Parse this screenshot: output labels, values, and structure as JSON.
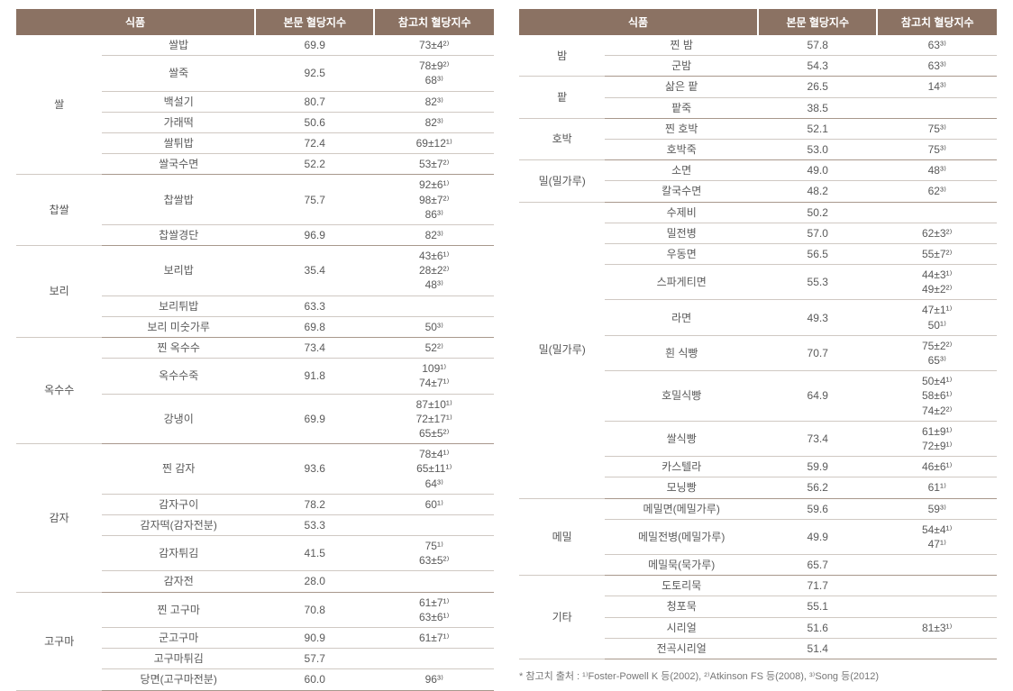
{
  "headers": {
    "food_group": "식품",
    "value1": "본문 혈당지수",
    "value2": "참고치 혈당지수"
  },
  "footnote": "* 참고치 출처 : ¹⁾Foster-Powell K 등(2002), ²⁾Atkinson FS 등(2008), ³⁾Song 등(2012)",
  "leftGroups": [
    {
      "cat": "쌀",
      "rows": [
        {
          "food": "쌀밥",
          "v1": "69.9",
          "v2": "73±4²⁾"
        },
        {
          "food": "쌀죽",
          "v1": "92.5",
          "v2": "78±9²⁾\n68³⁾"
        },
        {
          "food": "백설기",
          "v1": "80.7",
          "v2": "82³⁾"
        },
        {
          "food": "가래떡",
          "v1": "50.6",
          "v2": "82³⁾"
        },
        {
          "food": "쌀튀밥",
          "v1": "72.4",
          "v2": "69±12¹⁾"
        },
        {
          "food": "쌀국수면",
          "v1": "52.2",
          "v2": "53±7²⁾"
        }
      ]
    },
    {
      "cat": "찹쌀",
      "rows": [
        {
          "food": "찹쌀밥",
          "v1": "75.7",
          "v2": "92±6¹⁾\n98±7²⁾\n86³⁾"
        },
        {
          "food": "찹쌀경단",
          "v1": "96.9",
          "v2": "82³⁾"
        }
      ]
    },
    {
      "cat": "보리",
      "rows": [
        {
          "food": "보리밥",
          "v1": "35.4",
          "v2": "43±6¹⁾\n28±2²⁾\n48³⁾"
        },
        {
          "food": "보리튀밥",
          "v1": "63.3",
          "v2": ""
        },
        {
          "food": "보리 미숫가루",
          "v1": "69.8",
          "v2": "50³⁾"
        }
      ]
    },
    {
      "cat": "옥수수",
      "rows": [
        {
          "food": "찐 옥수수",
          "v1": "73.4",
          "v2": "52²⁾"
        },
        {
          "food": "옥수수죽",
          "v1": "91.8",
          "v2": "109¹⁾\n74±7¹⁾"
        },
        {
          "food": "강냉이",
          "v1": "69.9",
          "v2": "87±10¹⁾\n72±17¹⁾\n65±5²⁾"
        }
      ]
    },
    {
      "cat": "감자",
      "rows": [
        {
          "food": "찐 감자",
          "v1": "93.6",
          "v2": "78±4¹⁾\n65±11¹⁾\n64³⁾"
        },
        {
          "food": "감자구이",
          "v1": "78.2",
          "v2": "60¹⁾"
        },
        {
          "food": "감자떡(감자전분)",
          "v1": "53.3",
          "v2": ""
        },
        {
          "food": "감자튀김",
          "v1": "41.5",
          "v2": "75¹⁾\n63±5²⁾"
        },
        {
          "food": "감자전",
          "v1": "28.0",
          "v2": ""
        }
      ]
    },
    {
      "cat": "고구마",
      "rows": [
        {
          "food": "찐 고구마",
          "v1": "70.8",
          "v2": "61±7¹⁾\n63±6¹⁾"
        },
        {
          "food": "군고구마",
          "v1": "90.9",
          "v2": "61±7¹⁾"
        },
        {
          "food": "고구마튀김",
          "v1": "57.7",
          "v2": ""
        },
        {
          "food": "당면(고구마전분)",
          "v1": "60.0",
          "v2": "96³⁾"
        }
      ]
    }
  ],
  "rightGroups": [
    {
      "cat": "밤",
      "rows": [
        {
          "food": "찐 밤",
          "v1": "57.8",
          "v2": "63³⁾"
        },
        {
          "food": "군밤",
          "v1": "54.3",
          "v2": "63³⁾"
        }
      ]
    },
    {
      "cat": "팥",
      "rows": [
        {
          "food": "삶은 팥",
          "v1": "26.5",
          "v2": "14³⁾"
        },
        {
          "food": "팥죽",
          "v1": "38.5",
          "v2": ""
        }
      ]
    },
    {
      "cat": "호박",
      "rows": [
        {
          "food": "찐 호박",
          "v1": "52.1",
          "v2": "75³⁾"
        },
        {
          "food": "호박죽",
          "v1": "53.0",
          "v2": "75³⁾"
        }
      ]
    },
    {
      "cat": "밀(밀가루)",
      "rows": [
        {
          "food": "소면",
          "v1": "49.0",
          "v2": "48³⁾"
        },
        {
          "food": "칼국수면",
          "v1": "48.2",
          "v2": "62³⁾"
        }
      ]
    },
    {
      "cat": "밀(밀가루)",
      "rows": [
        {
          "food": "수제비",
          "v1": "50.2",
          "v2": ""
        },
        {
          "food": "밀전병",
          "v1": "57.0",
          "v2": "62±3²⁾"
        },
        {
          "food": "우동면",
          "v1": "56.5",
          "v2": "55±7²⁾"
        },
        {
          "food": "스파게티면",
          "v1": "55.3",
          "v2": "44±3¹⁾\n49±2²⁾"
        },
        {
          "food": "라면",
          "v1": "49.3",
          "v2": "47±1¹⁾\n50¹⁾"
        },
        {
          "food": "흰 식빵",
          "v1": "70.7",
          "v2": "75±2²⁾\n65³⁾"
        },
        {
          "food": "호밀식빵",
          "v1": "64.9",
          "v2": "50±4¹⁾\n58±6¹⁾\n74±2²⁾"
        },
        {
          "food": "쌀식빵",
          "v1": "73.4",
          "v2": "61±9¹⁾\n72±9¹⁾"
        },
        {
          "food": "카스텔라",
          "v1": "59.9",
          "v2": "46±6¹⁾"
        },
        {
          "food": "모닝빵",
          "v1": "56.2",
          "v2": "61¹⁾"
        }
      ]
    },
    {
      "cat": "메밀",
      "rows": [
        {
          "food": "메밀면(메밀가루)",
          "v1": "59.6",
          "v2": "59³⁾"
        },
        {
          "food": "메밀전병(메밀가루)",
          "v1": "49.9",
          "v2": "54±4¹⁾\n47¹⁾"
        },
        {
          "food": "메밀묵(묵가루)",
          "v1": "65.7",
          "v2": ""
        }
      ]
    },
    {
      "cat": "기타",
      "rows": [
        {
          "food": "도토리묵",
          "v1": "71.7",
          "v2": ""
        },
        {
          "food": "청포묵",
          "v1": "55.1",
          "v2": ""
        },
        {
          "food": "시리얼",
          "v1": "51.6",
          "v2": "81±3¹⁾"
        },
        {
          "food": "전곡시리얼",
          "v1": "51.4",
          "v2": ""
        }
      ]
    }
  ]
}
